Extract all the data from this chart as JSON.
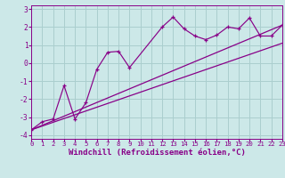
{
  "background_color": "#cce8e8",
  "grid_color": "#aacece",
  "line_color": "#880088",
  "xlabel": "Windchill (Refroidissement éolien,°C)",
  "xlabel_fontsize": 6.5,
  "xtick_fontsize": 5.2,
  "ytick_fontsize": 5.8,
  "xlim": [
    0,
    23
  ],
  "ylim": [
    -4.2,
    3.2
  ],
  "yticks": [
    -4,
    -3,
    -2,
    -1,
    0,
    1,
    2,
    3
  ],
  "xticks": [
    0,
    1,
    2,
    3,
    4,
    5,
    6,
    7,
    8,
    9,
    10,
    11,
    12,
    13,
    14,
    15,
    16,
    17,
    18,
    19,
    20,
    21,
    22,
    23
  ],
  "main_x": [
    0,
    1,
    2,
    3,
    4,
    5,
    6,
    7,
    8,
    9,
    12,
    13,
    14,
    15,
    16,
    17,
    18,
    19,
    20,
    21,
    22,
    23
  ],
  "main_y": [
    -3.7,
    -3.25,
    -3.1,
    -1.25,
    -3.1,
    -2.2,
    -0.35,
    0.6,
    0.65,
    -0.25,
    2.0,
    2.55,
    1.9,
    1.5,
    1.3,
    1.55,
    2.0,
    1.9,
    2.5,
    1.5,
    1.5,
    2.1
  ],
  "line1_x": [
    0,
    23
  ],
  "line1_y": [
    -3.7,
    2.1
  ],
  "line2_x": [
    0,
    23
  ],
  "line2_y": [
    -3.7,
    1.1
  ]
}
